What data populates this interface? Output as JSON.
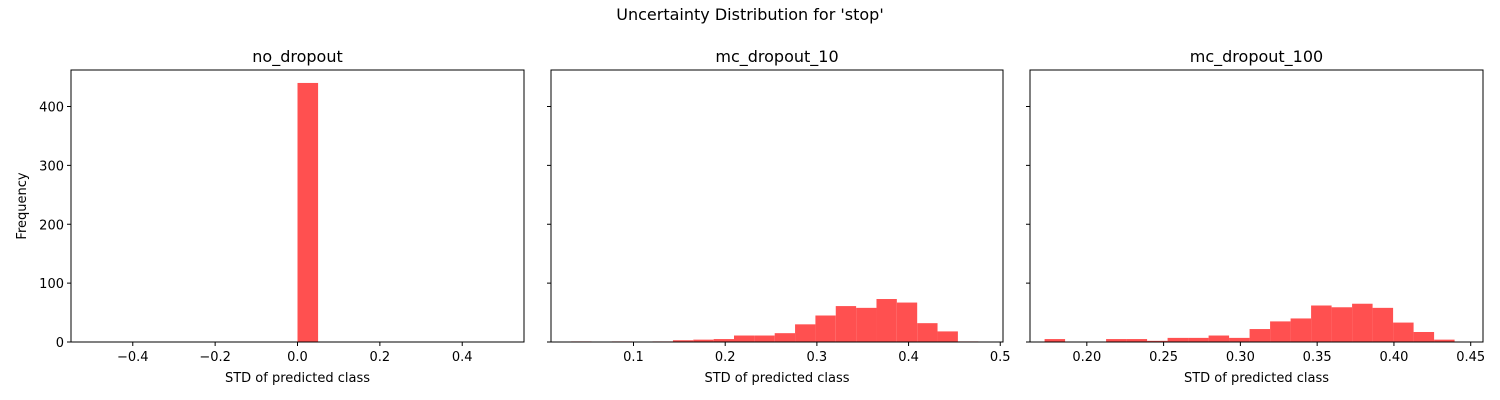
{
  "suptitle": "Uncertainty Distribution for 'stop'",
  "bar_color": "#ff5050",
  "chart_data": [
    {
      "type": "bar",
      "title": "no_dropout",
      "xlabel": "STD of predicted class",
      "ylabel": "Frequency",
      "xlim": [
        -0.55,
        0.55
      ],
      "ylim": [
        0,
        462
      ],
      "xticks": [
        -0.4,
        -0.2,
        0.0,
        0.2,
        0.4
      ],
      "xtick_labels": [
        "−0.4",
        "−0.2",
        "0.0",
        "0.2",
        "0.4"
      ],
      "yticks": [
        0,
        100,
        200,
        300,
        400
      ],
      "ytick_labels": [
        "0",
        "100",
        "200",
        "300",
        "400"
      ],
      "bin_edges": [
        0.0,
        0.05
      ],
      "values": [
        440
      ]
    },
    {
      "type": "bar",
      "title": "mc_dropout_10",
      "xlabel": "STD of predicted class",
      "ylabel": "",
      "xlim": [
        0.01,
        0.503
      ],
      "ylim": [
        0,
        462
      ],
      "xticks": [
        0.1,
        0.2,
        0.3,
        0.4,
        0.5
      ],
      "xtick_labels": [
        "0.1",
        "0.2",
        "0.3",
        "0.4",
        "0.5"
      ],
      "yticks": [
        0,
        100,
        200,
        300,
        400
      ],
      "ytick_labels": [
        "",
        "",
        "",
        "",
        ""
      ],
      "bin_edges": [
        0.032,
        0.0542,
        0.0764,
        0.0986,
        0.1208,
        0.143,
        0.1652,
        0.1874,
        0.2096,
        0.2318,
        0.254,
        0.2762,
        0.2984,
        0.3206,
        0.3428,
        0.365,
        0.3872,
        0.4094,
        0.4316,
        0.4538,
        0.476
      ],
      "values": [
        1,
        0,
        1,
        0,
        1,
        3,
        4,
        5,
        11,
        11,
        15,
        30,
        45,
        61,
        58,
        73,
        67,
        32,
        18,
        1
      ]
    },
    {
      "type": "bar",
      "title": "mc_dropout_100",
      "xlabel": "STD of predicted class",
      "ylabel": "",
      "xlim": [
        0.163,
        0.458
      ],
      "ylim": [
        0,
        462
      ],
      "xticks": [
        0.2,
        0.25,
        0.3,
        0.35,
        0.4,
        0.45
      ],
      "xtick_labels": [
        "0.20",
        "0.25",
        "0.30",
        "0.35",
        "0.40",
        "0.45"
      ],
      "yticks": [
        0,
        100,
        200,
        300,
        400
      ],
      "ytick_labels": [
        "",
        "",
        "",
        "",
        ""
      ],
      "bin_edges": [
        0.1725,
        0.18585,
        0.1992,
        0.21255,
        0.2259,
        0.23925,
        0.2526,
        0.26595,
        0.2793,
        0.29265,
        0.306,
        0.31935,
        0.3327,
        0.34605,
        0.3594,
        0.37275,
        0.3861,
        0.39945,
        0.4128,
        0.42615,
        0.4395
      ],
      "values": [
        5,
        0,
        0,
        5,
        5,
        2,
        7,
        7,
        11,
        7,
        22,
        35,
        40,
        62,
        59,
        65,
        58,
        33,
        17,
        4
      ]
    }
  ]
}
